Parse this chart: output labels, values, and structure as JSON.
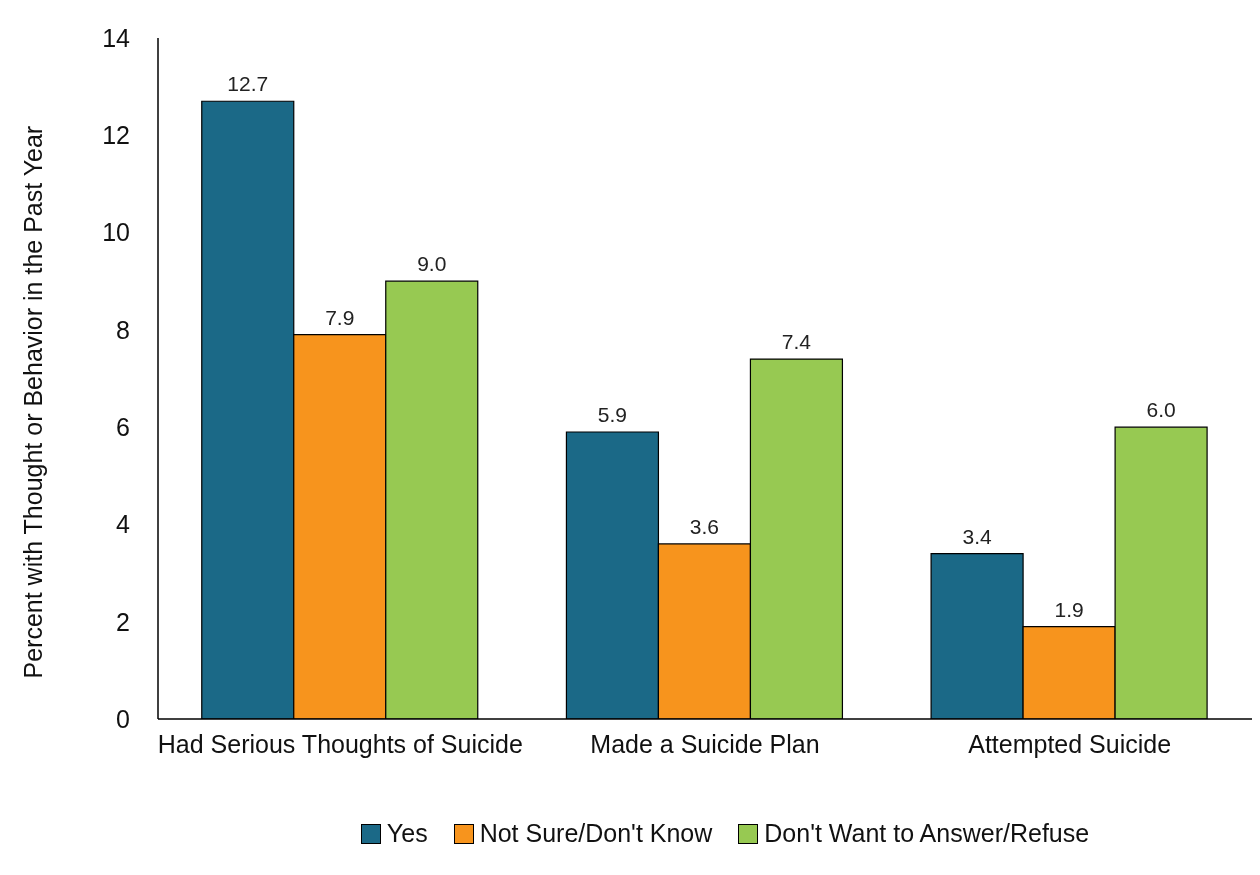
{
  "chart_data": {
    "type": "bar",
    "ylabel": "Percent with Thought or Behavior in the Past Year",
    "categories": [
      "Had Serious Thoughts of Suicide",
      "Made a Suicide Plan",
      "Attempted Suicide"
    ],
    "series": [
      {
        "name": "Yes",
        "color": "#1b6987",
        "values": [
          12.7,
          5.9,
          3.4
        ],
        "value_labels": [
          "12.7",
          "5.9",
          "3.4"
        ]
      },
      {
        "name": "Not Sure/Don't Know",
        "color": "#f7941d",
        "values": [
          7.9,
          3.6,
          1.9
        ],
        "value_labels": [
          "7.9",
          "3.6",
          "1.9"
        ]
      },
      {
        "name": "Don't Want to Answer/Refuse",
        "color": "#97c952",
        "values": [
          9,
          7.4,
          6
        ],
        "value_labels": [
          "9.0",
          "7.4",
          "6.0"
        ]
      }
    ],
    "ylim": [
      0,
      14
    ],
    "yticks": [
      0,
      2,
      4,
      6,
      8,
      10,
      12,
      14
    ],
    "grid": false,
    "legend": "bottom"
  }
}
